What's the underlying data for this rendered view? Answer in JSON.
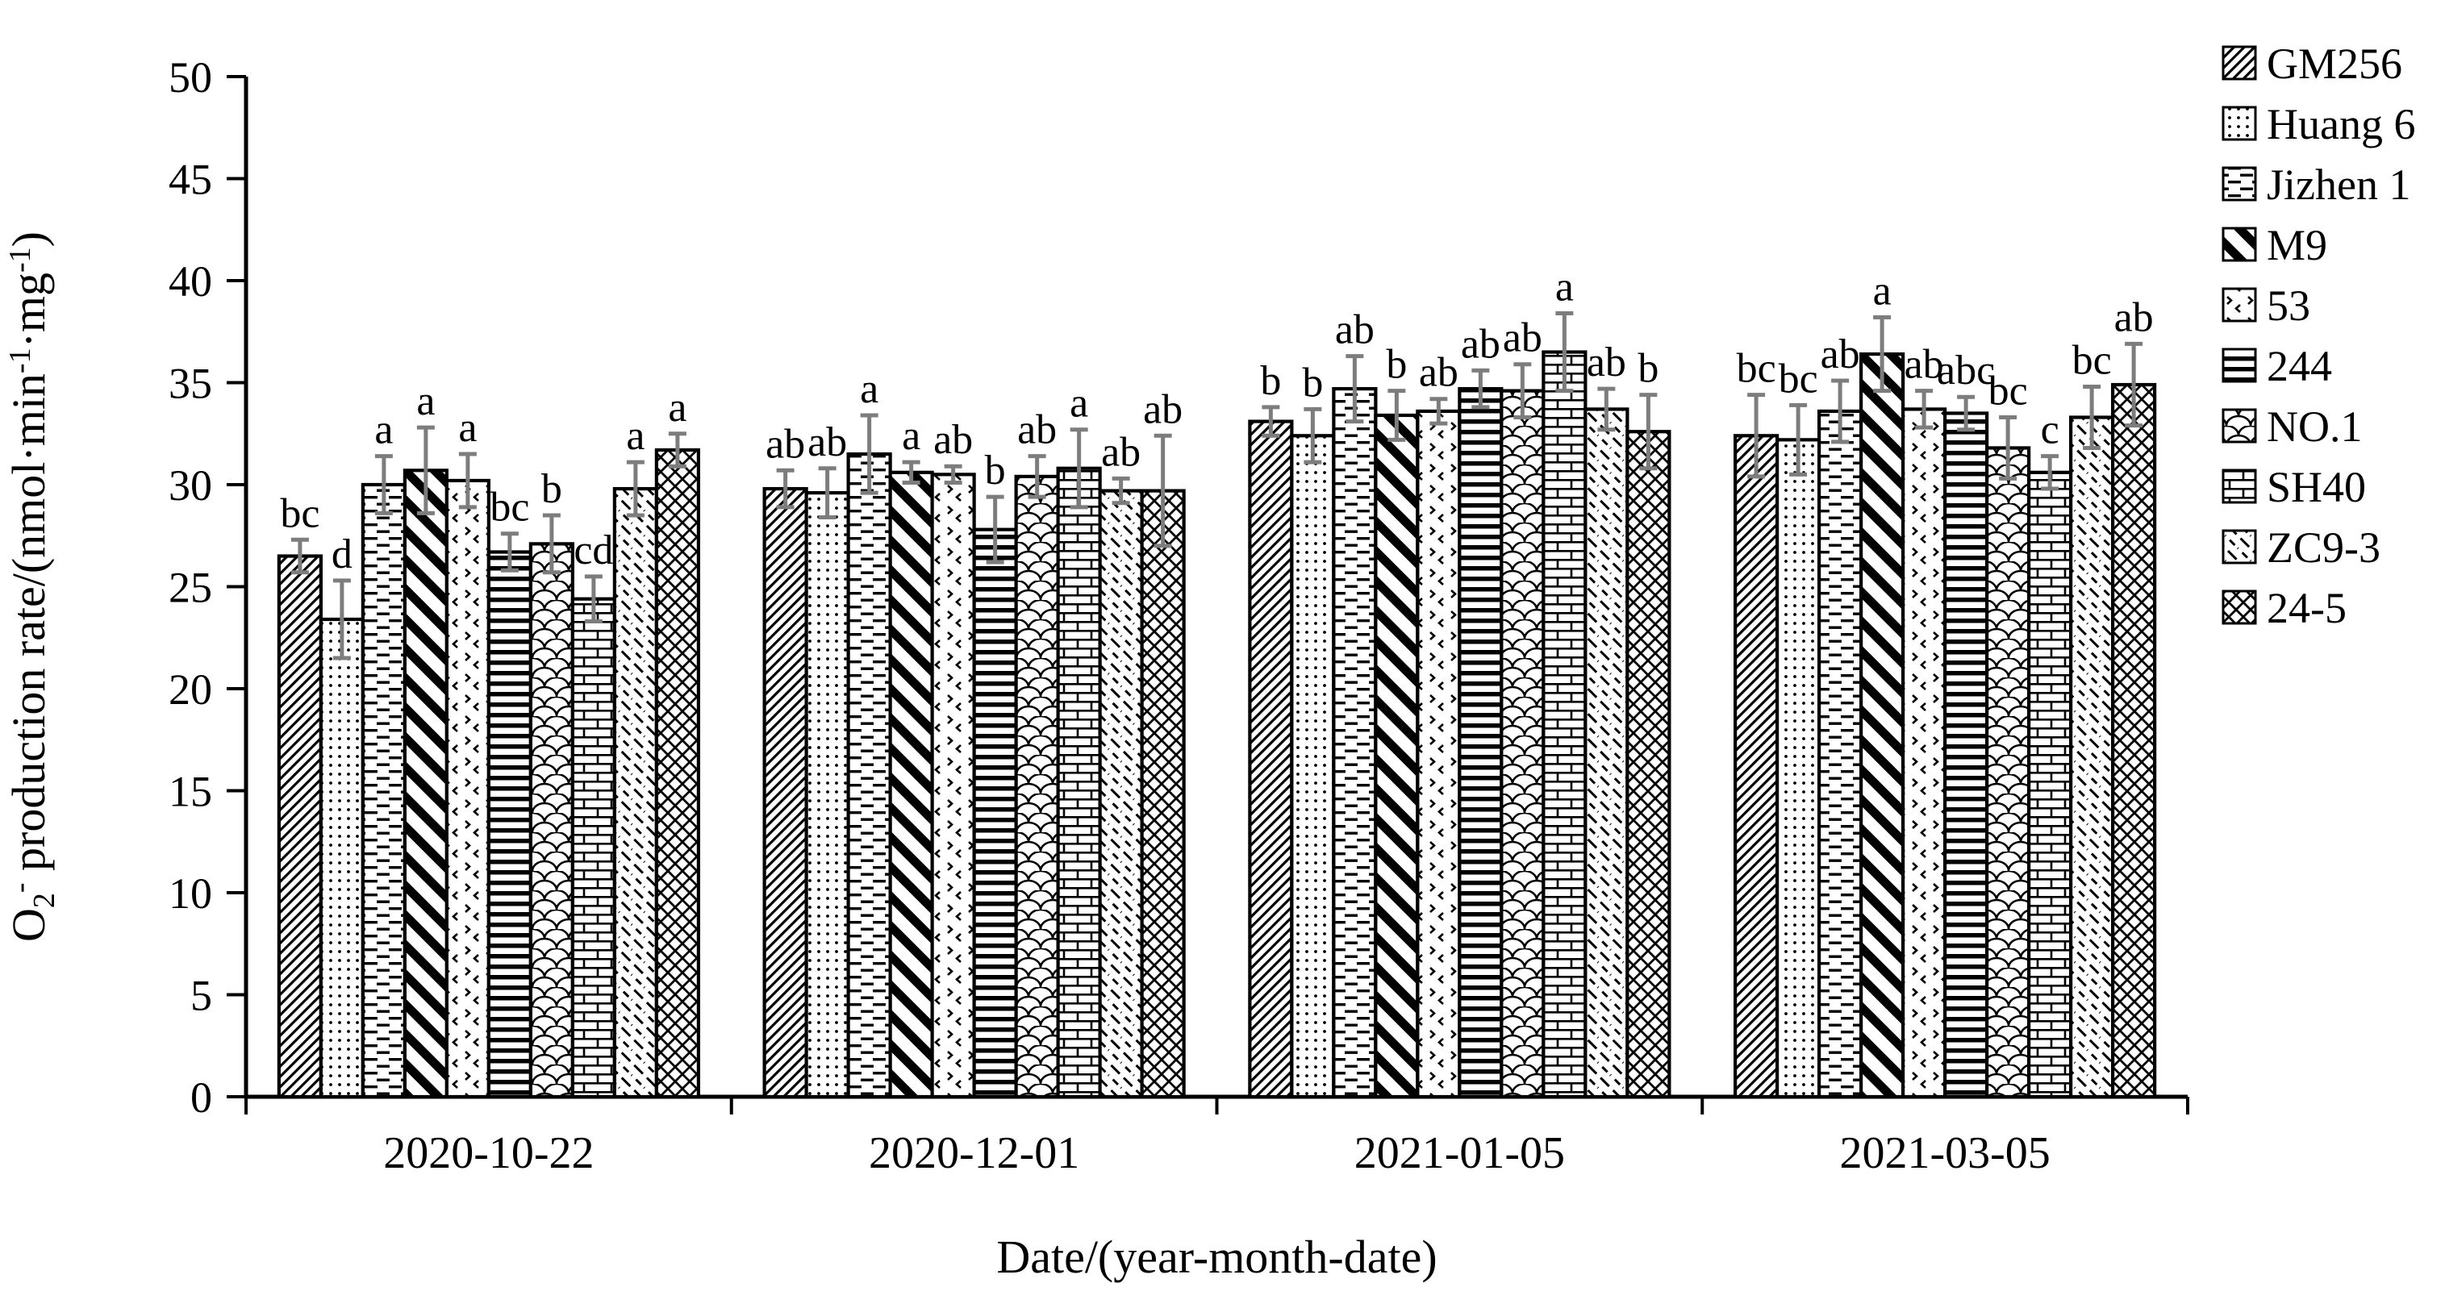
{
  "chart_data": {
    "type": "bar",
    "title": "",
    "xlabel": "Date/(year-month-date)",
    "ylabel": "O2- production rate/(nmol·min-1·mg-1)",
    "ylabel_parts": [
      {
        "t": "O"
      },
      {
        "t": "2",
        "sub": true
      },
      {
        "t": "-",
        "sup": true
      },
      {
        "t": " production rate/(nmol·min"
      },
      {
        "t": "-1",
        "sup": true
      },
      {
        "t": "·mg",
        "": ""
      },
      {
        "t": "-1",
        "sup": true
      },
      {
        "t": ")"
      }
    ],
    "ylim": [
      0,
      50
    ],
    "ytick_step": 5,
    "y_ticks": [
      0,
      5,
      10,
      15,
      20,
      25,
      30,
      35,
      40,
      45,
      50
    ],
    "grid": false,
    "legend_position": "right",
    "categories": [
      "2020-10-22",
      "2020-12-01",
      "2021-01-05",
      "2021-03-05"
    ],
    "series": [
      {
        "name": "GM256",
        "pattern": "diagonal-thin-up",
        "values": [
          26.5,
          29.8,
          33.1,
          32.4
        ],
        "errors": [
          0.8,
          0.9,
          0.7,
          2.0
        ],
        "letters": [
          "bc",
          "ab",
          "b",
          "bc"
        ]
      },
      {
        "name": "Huang 6",
        "pattern": "dots",
        "values": [
          23.4,
          29.6,
          32.4,
          32.2
        ],
        "errors": [
          1.9,
          1.2,
          1.3,
          1.7
        ],
        "letters": [
          "d",
          "ab",
          "b",
          "bc"
        ]
      },
      {
        "name": "Jizhen 1",
        "pattern": "dashes-horizontal",
        "values": [
          30.0,
          31.5,
          34.7,
          33.6
        ],
        "errors": [
          1.4,
          1.9,
          1.6,
          1.5
        ],
        "letters": [
          "a",
          "a",
          "ab",
          "ab"
        ]
      },
      {
        "name": "M9",
        "pattern": "diagonal-thick-down",
        "values": [
          30.7,
          30.6,
          33.4,
          36.4
        ],
        "errors": [
          2.1,
          0.5,
          1.2,
          1.8
        ],
        "letters": [
          "a",
          "a",
          "b",
          "a"
        ]
      },
      {
        "name": "53",
        "pattern": "chevrons",
        "values": [
          30.2,
          30.5,
          33.6,
          33.7
        ],
        "errors": [
          1.3,
          0.4,
          0.6,
          0.9
        ],
        "letters": [
          "a",
          "ab",
          "ab",
          "ab"
        ]
      },
      {
        "name": "244",
        "pattern": "lines-horizontal",
        "values": [
          26.7,
          27.8,
          34.7,
          33.5
        ],
        "errors": [
          0.9,
          1.6,
          0.9,
          0.8
        ],
        "letters": [
          "bc",
          "b",
          "ab",
          "abc"
        ]
      },
      {
        "name": "NO.1",
        "pattern": "scales",
        "values": [
          27.1,
          30.4,
          34.6,
          31.8
        ],
        "errors": [
          1.4,
          1.0,
          1.3,
          1.5
        ],
        "letters": [
          "b",
          "ab",
          "ab",
          "bc"
        ]
      },
      {
        "name": "SH40",
        "pattern": "bricks",
        "values": [
          24.4,
          30.8,
          36.5,
          30.6
        ],
        "errors": [
          1.1,
          1.9,
          1.9,
          0.8
        ],
        "letters": [
          "cd",
          "a",
          "a",
          "c"
        ]
      },
      {
        "name": "ZC9-3",
        "pattern": "diagonal-dash-down",
        "values": [
          29.8,
          29.7,
          33.7,
          33.3
        ],
        "errors": [
          1.3,
          0.6,
          1.0,
          1.5
        ],
        "letters": [
          "a",
          "ab",
          "ab",
          "bc"
        ]
      },
      {
        "name": "24-5",
        "pattern": "crosshatch-diamond",
        "values": [
          31.7,
          29.7,
          32.6,
          34.9
        ],
        "errors": [
          0.8,
          2.7,
          1.8,
          2.0
        ],
        "letters": [
          "a",
          "ab",
          "b",
          "ab"
        ]
      }
    ],
    "colors": {
      "bar_fill_background": "#ffffff",
      "bar_outline": "#000000",
      "pattern_ink": "#000000",
      "error_bar": "#7d7d7d",
      "axis": "#000000",
      "text": "#000000"
    }
  }
}
